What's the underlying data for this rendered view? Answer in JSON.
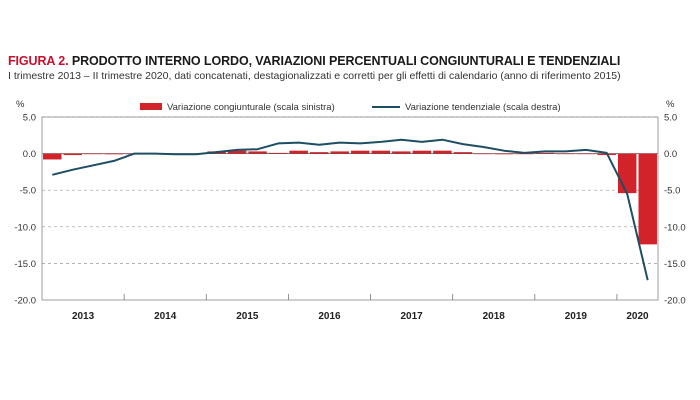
{
  "header": {
    "figure_label": "FIGURA 2.",
    "title": "PRODOTTO INTERNO LORDO, VARIAZIONI PERCENTUALI CONGIUNTURALI E TENDENZIALI",
    "subtitle": "I trimestre 2013 – II trimestre 2020, dati concatenati, destagionalizzati e corretti per gli effetti di calendario (anno di riferimento 2015)"
  },
  "chart_data": {
    "type": "bar",
    "title": "PRODOTTO INTERNO LORDO, VARIAZIONI PERCENTUALI CONGIUNTURALI E TENDENZIALI",
    "left_axis_unit": "%",
    "right_axis_unit": "%",
    "ylim": [
      -20,
      5
    ],
    "y_ticks": [
      "5.0",
      "0.0",
      "-5.0",
      "-10.0",
      "-15.0",
      "-20.0"
    ],
    "y_tick_values": [
      5,
      0,
      -5,
      -10,
      -15,
      -20
    ],
    "years": [
      "2013",
      "2014",
      "2015",
      "2016",
      "2017",
      "2018",
      "2019",
      "2020"
    ],
    "quarters": [
      "2013Q1",
      "2013Q2",
      "2013Q3",
      "2013Q4",
      "2014Q1",
      "2014Q2",
      "2014Q3",
      "2014Q4",
      "2015Q1",
      "2015Q2",
      "2015Q3",
      "2015Q4",
      "2016Q1",
      "2016Q2",
      "2016Q3",
      "2016Q4",
      "2017Q1",
      "2017Q2",
      "2017Q3",
      "2017Q4",
      "2018Q1",
      "2018Q2",
      "2018Q3",
      "2018Q4",
      "2019Q1",
      "2019Q2",
      "2019Q3",
      "2019Q4",
      "2020Q1",
      "2020Q2"
    ],
    "grid": "horizontal dashed",
    "legend_position": "top",
    "series": [
      {
        "name": "Variazione congiunturale (scala sinistra)",
        "type": "bar",
        "color": "#d2232a",
        "values": [
          -0.8,
          -0.2,
          0.0,
          -0.1,
          0.0,
          -0.1,
          0.0,
          0.0,
          0.3,
          0.4,
          0.3,
          0.1,
          0.4,
          0.2,
          0.3,
          0.4,
          0.4,
          0.3,
          0.4,
          0.4,
          0.2,
          0.0,
          -0.1,
          0.0,
          0.1,
          0.0,
          0.0,
          -0.2,
          -5.4,
          -12.4
        ]
      },
      {
        "name": "Variazione tendenziale (scala destra)",
        "type": "line",
        "color": "#1d4e63",
        "values": [
          -2.9,
          -2.2,
          -1.6,
          -1.0,
          0.0,
          0.0,
          -0.1,
          -0.1,
          0.2,
          0.5,
          0.6,
          1.4,
          1.5,
          1.2,
          1.5,
          1.4,
          1.6,
          1.9,
          1.6,
          1.9,
          1.3,
          0.9,
          0.4,
          0.1,
          0.3,
          0.3,
          0.5,
          0.1,
          -5.5,
          -17.3
        ]
      }
    ]
  }
}
